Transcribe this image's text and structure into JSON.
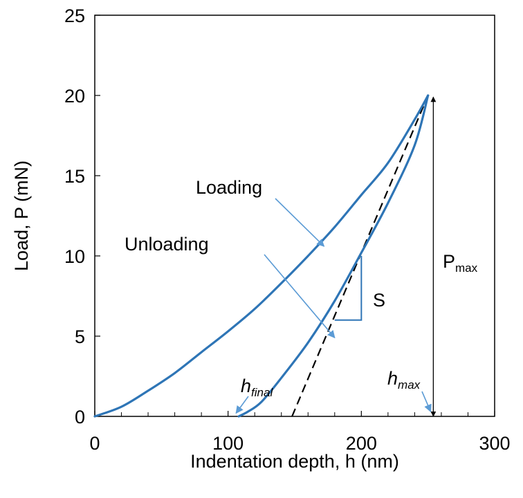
{
  "chart_data": {
    "type": "line",
    "xlabel": "Indentation depth, h (nm)",
    "ylabel": "Load, P (mN)",
    "xlim": [
      0,
      300
    ],
    "ylim": [
      0,
      25
    ],
    "x_ticks": [
      "0",
      "100",
      "200",
      "300"
    ],
    "y_ticks": [
      "0",
      "5",
      "10",
      "15",
      "20",
      "25"
    ],
    "x_minor_step": 20,
    "grid": false,
    "series": [
      {
        "name": "Loading",
        "color": "#2E75B6",
        "x": [
          0,
          20,
          40,
          60,
          80,
          100,
          120,
          140,
          160,
          180,
          200,
          220,
          240,
          250
        ],
        "y": [
          0,
          0.6,
          1.6,
          2.7,
          4.0,
          5.3,
          6.7,
          8.3,
          10.0,
          11.8,
          13.8,
          15.8,
          18.5,
          20
        ]
      },
      {
        "name": "Unloading",
        "color": "#2E75B6",
        "x": [
          108,
          115,
          125,
          140,
          160,
          180,
          200,
          220,
          240,
          250
        ],
        "y": [
          0,
          0.3,
          0.9,
          2.4,
          4.6,
          7.2,
          10.2,
          13.3,
          16.9,
          20
        ]
      }
    ],
    "tangent_line": {
      "x": [
        148,
        250
      ],
      "y": [
        0,
        20
      ],
      "color": "#000000",
      "style": "dashed"
    },
    "stiffness_triangle": {
      "x": [
        180,
        200
      ],
      "y": [
        6,
        10
      ],
      "color": "#2E75B6"
    },
    "annotations": {
      "loading": "Loading",
      "unloading": "Unloading",
      "stiffness": "S",
      "pmax_main": "P",
      "pmax_sub": "max",
      "hfinal_main": "h",
      "hfinal_sub": "final",
      "hmax_main": "h",
      "hmax_sub": "max"
    },
    "arrow_color": "#5B9BD5"
  }
}
